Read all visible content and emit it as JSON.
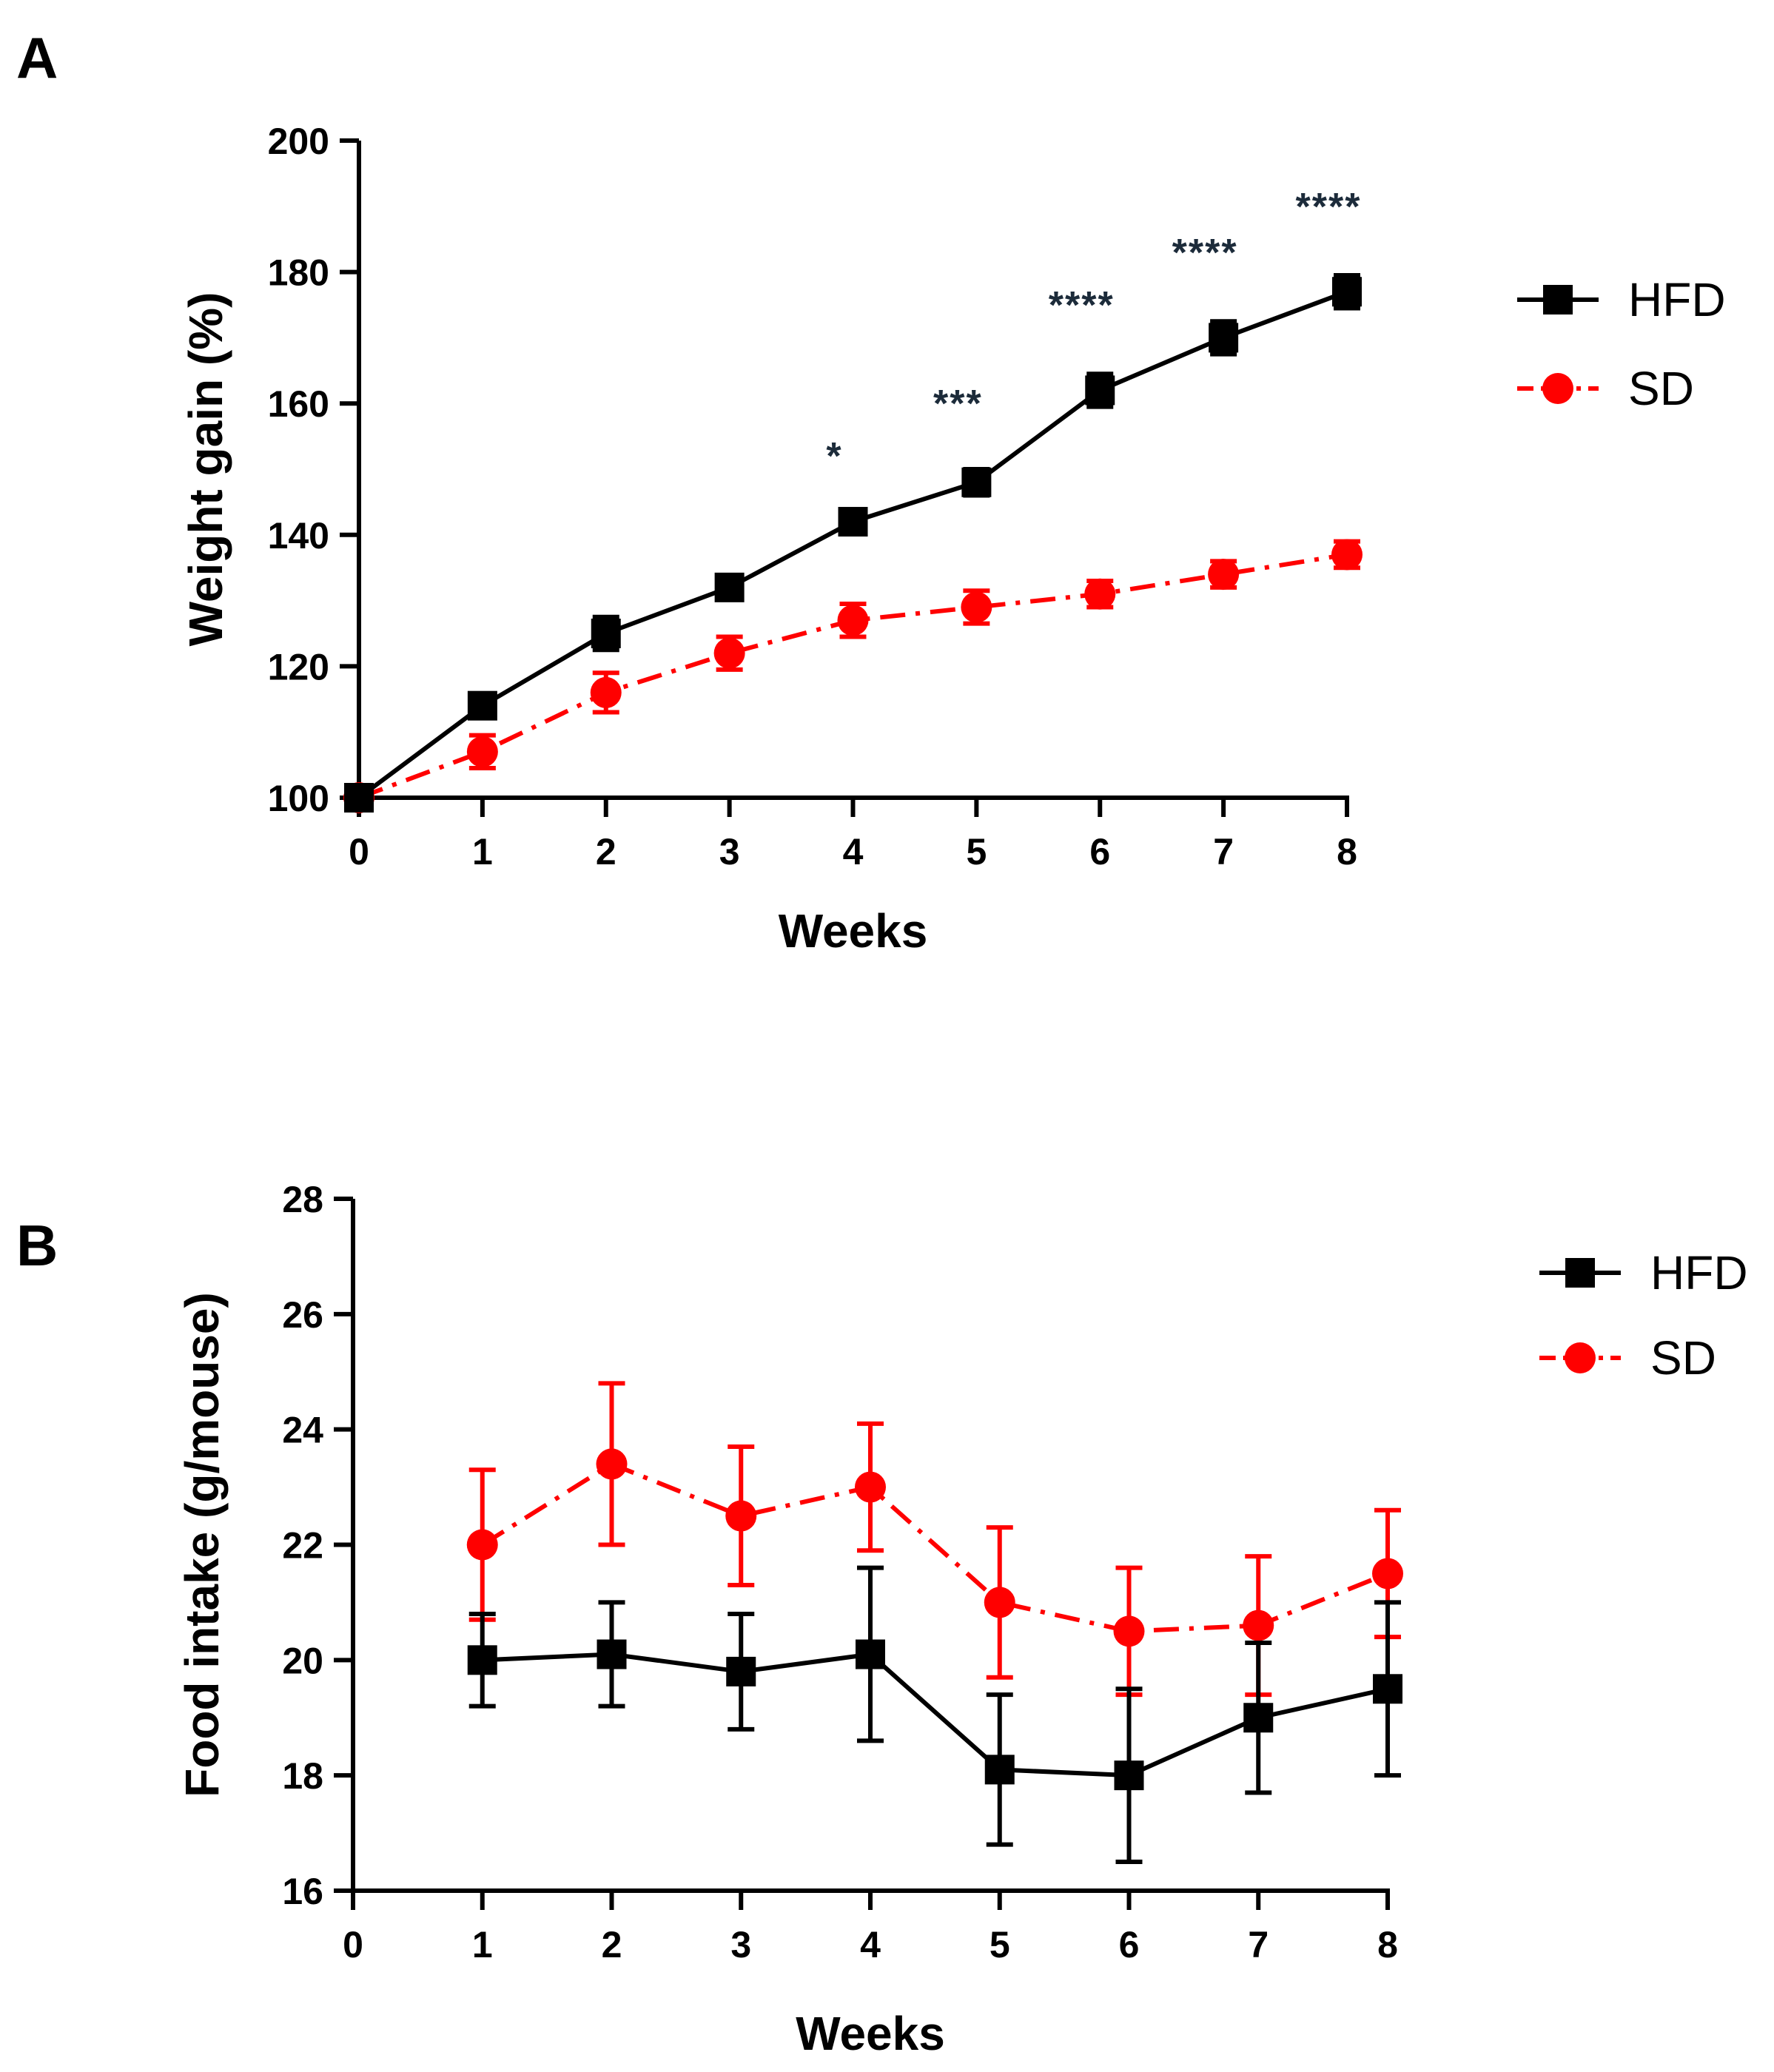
{
  "chart_data": [
    {
      "panel": "A",
      "type": "line",
      "xlabel": "Weeks",
      "ylabel": "Weight gain (%)",
      "xlim": [
        0,
        8
      ],
      "ylim": [
        100,
        200
      ],
      "xticks": [
        "0",
        "1",
        "2",
        "3",
        "4",
        "5",
        "6",
        "7",
        "8"
      ],
      "yticks": [
        "100",
        "120",
        "140",
        "160",
        "180",
        "200"
      ],
      "legend_position": "right",
      "series": [
        {
          "name": "HFD",
          "color": "#000000",
          "marker": "square",
          "line": "solid",
          "x": [
            0,
            1,
            2,
            3,
            4,
            5,
            6,
            7,
            8
          ],
          "values": [
            100,
            114,
            125,
            132,
            142,
            148,
            162,
            170,
            177
          ],
          "errors": [
            0,
            1.5,
            2.5,
            1.5,
            1.5,
            2,
            2.5,
            2.5,
            2.5
          ]
        },
        {
          "name": "SD",
          "color": "#ff0000",
          "marker": "circle",
          "line": "dash-dot",
          "x": [
            0,
            1,
            2,
            3,
            4,
            5,
            6,
            7,
            8
          ],
          "values": [
            100,
            107,
            116,
            122,
            127,
            129,
            131,
            134,
            137
          ],
          "errors": [
            0,
            2.5,
            3,
            2.5,
            2.5,
            2.5,
            2,
            2,
            2
          ]
        }
      ],
      "annotations": [
        {
          "x": 4,
          "text": "*",
          "y": 152
        },
        {
          "x": 5,
          "text": "***",
          "y": 160
        },
        {
          "x": 6,
          "text": "****",
          "y": 175
        },
        {
          "x": 7,
          "text": "****",
          "y": 183
        },
        {
          "x": 8,
          "text": "****",
          "y": 190
        }
      ]
    },
    {
      "panel": "B",
      "type": "line",
      "xlabel": "Weeks",
      "ylabel": "Food intake (g/mouse)",
      "xlim": [
        0,
        8
      ],
      "ylim": [
        16,
        28
      ],
      "xticks": [
        "0",
        "1",
        "2",
        "3",
        "4",
        "5",
        "6",
        "7",
        "8"
      ],
      "yticks": [
        "16",
        "18",
        "20",
        "22",
        "24",
        "26",
        "28"
      ],
      "legend_position": "right",
      "series": [
        {
          "name": "HFD",
          "color": "#000000",
          "marker": "square",
          "line": "solid",
          "x": [
            1,
            2,
            3,
            4,
            5,
            6,
            7,
            8
          ],
          "values": [
            20.0,
            20.1,
            19.8,
            20.1,
            18.1,
            18.0,
            19.0,
            19.5
          ],
          "errors": [
            0.8,
            0.9,
            1.0,
            1.5,
            1.3,
            1.5,
            1.3,
            1.5
          ]
        },
        {
          "name": "SD",
          "color": "#ff0000",
          "marker": "circle",
          "line": "dash-dot",
          "x": [
            1,
            2,
            3,
            4,
            5,
            6,
            7,
            8
          ],
          "values": [
            22.0,
            23.4,
            22.5,
            23.0,
            21.0,
            20.5,
            20.6,
            21.5
          ],
          "errors": [
            1.3,
            1.4,
            1.2,
            1.1,
            1.3,
            1.1,
            1.2,
            1.1
          ]
        }
      ]
    }
  ]
}
